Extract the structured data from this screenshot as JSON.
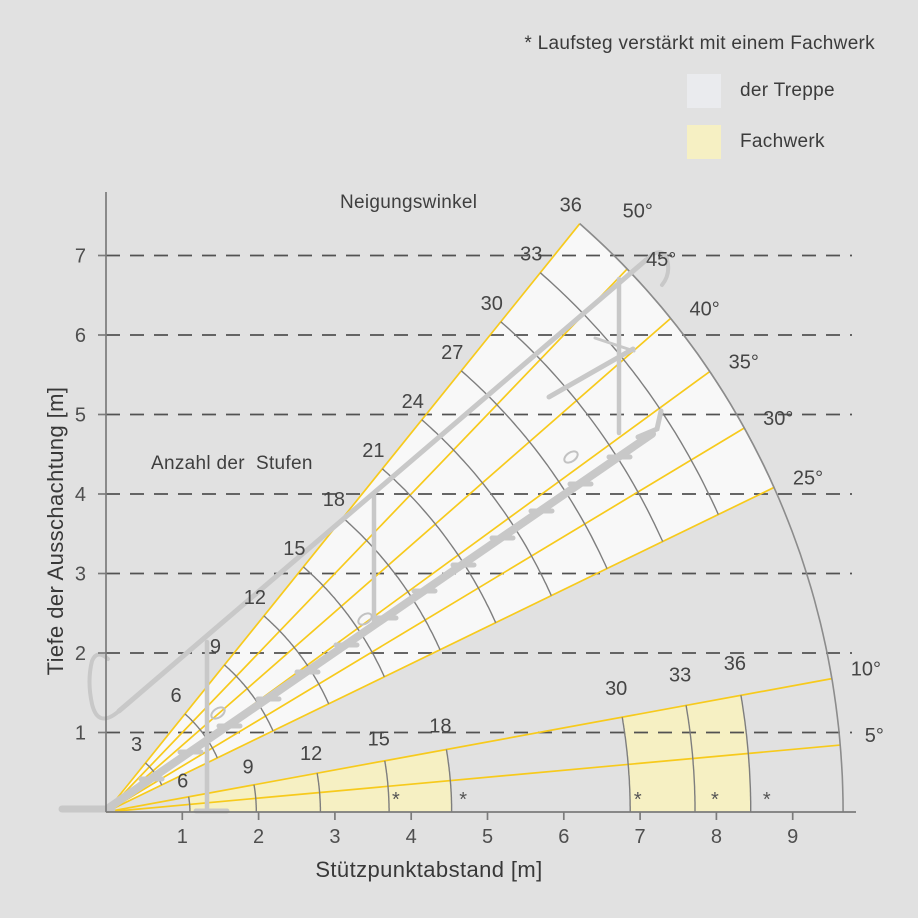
{
  "legend": {
    "note": "* Laufsteg verstärkt mit einem Fachwerk",
    "items": [
      {
        "label": "der Treppe",
        "color": "#eaebee"
      },
      {
        "label": "Fachwerk",
        "color": "#f6f0c3"
      }
    ]
  },
  "chart_data": {
    "type": "fan-diagram",
    "titles": {
      "angle_fan": "Neigungswinkel",
      "steps": "Anzahl der  Stufen",
      "x": "Stützpunktabstand [m]",
      "y": "Tiefe der Ausschachtung [m]"
    },
    "x_ticks": [
      1,
      2,
      3,
      4,
      5,
      6,
      7,
      8,
      9
    ],
    "y_ticks": [
      1,
      2,
      3,
      4,
      5,
      6,
      7
    ],
    "xlim": [
      0,
      9.9
    ],
    "ylim": [
      0,
      7.9
    ],
    "grid": "dashed-horizontal",
    "angle_label_suffix": "°",
    "angle_lines_deg": [
      5,
      10,
      25,
      30,
      35,
      40,
      45,
      50
    ],
    "outer_radius_m": 9.66,
    "treppe_fan": {
      "angle_min_deg": 25,
      "angle_max_deg": 50,
      "step_counts": [
        3,
        6,
        9,
        12,
        15,
        18,
        21,
        24,
        27,
        30,
        33,
        36
      ],
      "metres_per_step": 0.26833
    },
    "fachwerk_band": {
      "angle_min_deg": 0,
      "angle_max_deg": 10,
      "segments": [
        {
          "step_counts": [
            6,
            9,
            12,
            15,
            18
          ],
          "radii_m": [
            1.1,
            1.97,
            2.81,
            3.71,
            4.53
          ]
        },
        {
          "step_counts": [
            30,
            33,
            36
          ],
          "radii_m": [
            6.87,
            7.72,
            8.45
          ]
        }
      ]
    },
    "asterisks": {
      "symbol": "*",
      "x_positions_m": [
        3.8,
        4.68,
        6.97,
        7.98,
        8.66
      ]
    },
    "colors": {
      "background": "#e1e1e1",
      "treppe_fill": "#f8f8f8",
      "fachwerk_fill": "#f6f0c3",
      "angle_line": "#f7ca1c",
      "arc_line": "#7e7e7e",
      "outer_arc": "#8c8c8c",
      "grid_dash": "#525252",
      "axis": "#7b7b7b",
      "tick_text": "#4f4f4f",
      "label_text": "#454545",
      "stair_sketch": "#c8c8c8"
    }
  }
}
